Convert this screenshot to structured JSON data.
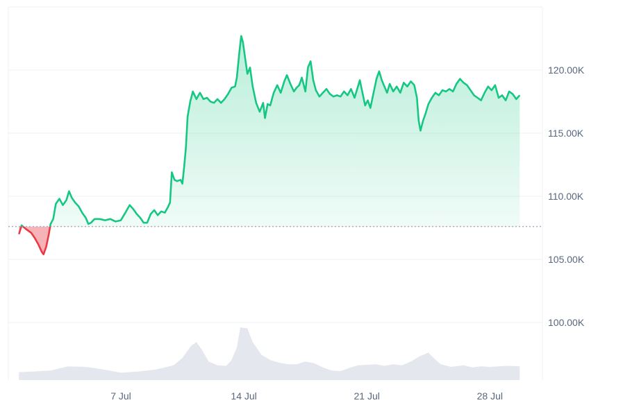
{
  "chart_data": {
    "type": "area",
    "title": "",
    "xlabel": "",
    "ylabel": "",
    "y_axis_position": "right",
    "x_unit": "days (fractional) from 1 Jul",
    "x_range": [
      1.2,
      31.0
    ],
    "ylim": [
      96000,
      124800
    ],
    "baseline": 107600,
    "colors": {
      "up_line": "#16c784",
      "up_fill": "#16c784",
      "down_line": "#ea3943",
      "down_fill": "#ea3943",
      "baseline": "#a6b0c3",
      "grid": "#eff2f5",
      "volume": "#dfe3ea",
      "axis_text": "#58667e"
    },
    "y_ticks": [
      {
        "value": 100000,
        "label": "100.00K"
      },
      {
        "value": 105000,
        "label": "105.00K"
      },
      {
        "value": 110000,
        "label": "110.00K"
      },
      {
        "value": 115000,
        "label": "115.00K"
      },
      {
        "value": 120000,
        "label": "120.00K"
      }
    ],
    "x_ticks": [
      {
        "value": 7,
        "label": "7 Jul"
      },
      {
        "value": 14,
        "label": "14 Jul"
      },
      {
        "value": 21,
        "label": "21 Jul"
      },
      {
        "value": 28,
        "label": "28 Jul"
      }
    ],
    "price": [
      [
        1.2,
        107000
      ],
      [
        1.35,
        107700
      ],
      [
        1.6,
        107400
      ],
      [
        1.9,
        107100
      ],
      [
        2.1,
        106700
      ],
      [
        2.3,
        106200
      ],
      [
        2.5,
        105600
      ],
      [
        2.6,
        105400
      ],
      [
        2.75,
        106000
      ],
      [
        2.9,
        107000
      ],
      [
        3.0,
        107800
      ],
      [
        3.15,
        108200
      ],
      [
        3.3,
        109400
      ],
      [
        3.5,
        109800
      ],
      [
        3.7,
        109300
      ],
      [
        3.9,
        109700
      ],
      [
        4.05,
        110400
      ],
      [
        4.2,
        109900
      ],
      [
        4.4,
        109500
      ],
      [
        4.6,
        109200
      ],
      [
        4.8,
        108700
      ],
      [
        5.0,
        108300
      ],
      [
        5.15,
        107800
      ],
      [
        5.3,
        107900
      ],
      [
        5.5,
        108200
      ],
      [
        5.8,
        108200
      ],
      [
        6.1,
        108100
      ],
      [
        6.4,
        108200
      ],
      [
        6.7,
        108000
      ],
      [
        7.0,
        108100
      ],
      [
        7.3,
        108800
      ],
      [
        7.5,
        109300
      ],
      [
        7.7,
        109000
      ],
      [
        7.9,
        108600
      ],
      [
        8.1,
        108300
      ],
      [
        8.3,
        107900
      ],
      [
        8.5,
        107900
      ],
      [
        8.7,
        108600
      ],
      [
        8.9,
        108900
      ],
      [
        9.1,
        108500
      ],
      [
        9.3,
        108800
      ],
      [
        9.5,
        108700
      ],
      [
        9.7,
        109200
      ],
      [
        9.8,
        109500
      ],
      [
        9.9,
        111900
      ],
      [
        10.05,
        111300
      ],
      [
        10.2,
        111200
      ],
      [
        10.4,
        111300
      ],
      [
        10.5,
        111000
      ],
      [
        10.6,
        112300
      ],
      [
        10.7,
        113800
      ],
      [
        10.8,
        116300
      ],
      [
        10.95,
        117500
      ],
      [
        11.1,
        118300
      ],
      [
        11.3,
        117700
      ],
      [
        11.5,
        118200
      ],
      [
        11.7,
        117700
      ],
      [
        11.9,
        117800
      ],
      [
        12.1,
        117500
      ],
      [
        12.3,
        117400
      ],
      [
        12.5,
        117700
      ],
      [
        12.7,
        117400
      ],
      [
        12.9,
        117700
      ],
      [
        13.1,
        118100
      ],
      [
        13.3,
        118600
      ],
      [
        13.5,
        118700
      ],
      [
        13.6,
        119400
      ],
      [
        13.75,
        121500
      ],
      [
        13.85,
        122700
      ],
      [
        13.95,
        122200
      ],
      [
        14.1,
        120700
      ],
      [
        14.2,
        119700
      ],
      [
        14.35,
        120200
      ],
      [
        14.5,
        118700
      ],
      [
        14.7,
        117400
      ],
      [
        14.9,
        116700
      ],
      [
        15.1,
        117400
      ],
      [
        15.2,
        116200
      ],
      [
        15.35,
        117300
      ],
      [
        15.5,
        117200
      ],
      [
        15.7,
        118200
      ],
      [
        15.9,
        118800
      ],
      [
        16.1,
        118200
      ],
      [
        16.3,
        119100
      ],
      [
        16.45,
        119600
      ],
      [
        16.65,
        118900
      ],
      [
        16.85,
        118300
      ],
      [
        17.0,
        118600
      ],
      [
        17.15,
        118800
      ],
      [
        17.3,
        119400
      ],
      [
        17.5,
        118300
      ],
      [
        17.65,
        120200
      ],
      [
        17.8,
        120700
      ],
      [
        17.95,
        119200
      ],
      [
        18.1,
        118400
      ],
      [
        18.3,
        117900
      ],
      [
        18.5,
        118200
      ],
      [
        18.7,
        118500
      ],
      [
        18.9,
        118100
      ],
      [
        19.1,
        117900
      ],
      [
        19.3,
        118000
      ],
      [
        19.5,
        117900
      ],
      [
        19.7,
        118300
      ],
      [
        19.9,
        118000
      ],
      [
        20.1,
        118500
      ],
      [
        20.3,
        117800
      ],
      [
        20.45,
        118500
      ],
      [
        20.6,
        119200
      ],
      [
        20.75,
        118200
      ],
      [
        20.9,
        117200
      ],
      [
        21.05,
        117600
      ],
      [
        21.2,
        117000
      ],
      [
        21.35,
        118000
      ],
      [
        21.55,
        119300
      ],
      [
        21.7,
        119900
      ],
      [
        21.85,
        119200
      ],
      [
        22.0,
        118700
      ],
      [
        22.15,
        118200
      ],
      [
        22.3,
        118900
      ],
      [
        22.5,
        118300
      ],
      [
        22.7,
        118700
      ],
      [
        22.9,
        118200
      ],
      [
        23.1,
        119000
      ],
      [
        23.3,
        118700
      ],
      [
        23.5,
        119100
      ],
      [
        23.7,
        118800
      ],
      [
        23.85,
        117800
      ],
      [
        23.95,
        116000
      ],
      [
        24.05,
        115200
      ],
      [
        24.2,
        116000
      ],
      [
        24.35,
        116600
      ],
      [
        24.5,
        117300
      ],
      [
        24.7,
        117800
      ],
      [
        24.9,
        118200
      ],
      [
        25.1,
        118000
      ],
      [
        25.3,
        118400
      ],
      [
        25.5,
        118300
      ],
      [
        25.7,
        118500
      ],
      [
        25.9,
        118300
      ],
      [
        26.1,
        118900
      ],
      [
        26.3,
        119300
      ],
      [
        26.5,
        119000
      ],
      [
        26.7,
        118800
      ],
      [
        26.9,
        118400
      ],
      [
        27.1,
        118000
      ],
      [
        27.3,
        117800
      ],
      [
        27.5,
        117600
      ],
      [
        27.7,
        118200
      ],
      [
        27.9,
        118700
      ],
      [
        28.1,
        118400
      ],
      [
        28.3,
        118800
      ],
      [
        28.5,
        117800
      ],
      [
        28.7,
        118000
      ],
      [
        28.9,
        117600
      ],
      [
        29.1,
        118300
      ],
      [
        29.3,
        118100
      ],
      [
        29.5,
        117700
      ],
      [
        29.7,
        118000
      ]
    ],
    "volume": [
      [
        1.2,
        0.15
      ],
      [
        2.0,
        0.16
      ],
      [
        3.0,
        0.18
      ],
      [
        4.0,
        0.26
      ],
      [
        5.0,
        0.25
      ],
      [
        6.0,
        0.2
      ],
      [
        7.0,
        0.14
      ],
      [
        8.0,
        0.16
      ],
      [
        9.0,
        0.2
      ],
      [
        10.0,
        0.28
      ],
      [
        10.5,
        0.42
      ],
      [
        11.0,
        0.65
      ],
      [
        11.3,
        0.72
      ],
      [
        11.6,
        0.58
      ],
      [
        12.0,
        0.35
      ],
      [
        12.5,
        0.28
      ],
      [
        13.0,
        0.27
      ],
      [
        13.3,
        0.38
      ],
      [
        13.6,
        0.62
      ],
      [
        13.8,
        1.0
      ],
      [
        14.2,
        0.98
      ],
      [
        14.5,
        0.72
      ],
      [
        15.0,
        0.48
      ],
      [
        15.5,
        0.38
      ],
      [
        16.0,
        0.33
      ],
      [
        16.5,
        0.3
      ],
      [
        17.0,
        0.3
      ],
      [
        17.5,
        0.35
      ],
      [
        18.0,
        0.32
      ],
      [
        18.5,
        0.24
      ],
      [
        19.0,
        0.18
      ],
      [
        19.5,
        0.17
      ],
      [
        20.0,
        0.23
      ],
      [
        20.5,
        0.28
      ],
      [
        21.0,
        0.29
      ],
      [
        21.5,
        0.3
      ],
      [
        22.0,
        0.27
      ],
      [
        22.5,
        0.3
      ],
      [
        23.0,
        0.28
      ],
      [
        23.5,
        0.35
      ],
      [
        24.0,
        0.45
      ],
      [
        24.5,
        0.52
      ],
      [
        24.8,
        0.42
      ],
      [
        25.2,
        0.3
      ],
      [
        25.8,
        0.25
      ],
      [
        26.5,
        0.28
      ],
      [
        27.0,
        0.24
      ],
      [
        27.5,
        0.26
      ],
      [
        28.0,
        0.25
      ],
      [
        29.0,
        0.27
      ],
      [
        29.7,
        0.26
      ]
    ]
  }
}
